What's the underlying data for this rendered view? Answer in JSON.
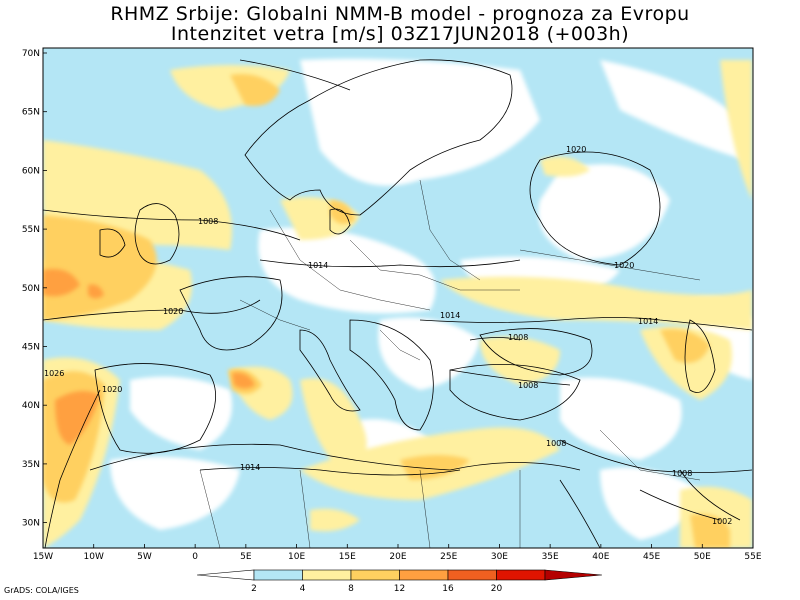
{
  "title_line1": "RHMZ Srbije: Globalni NMM-B model - prognoza za Evropu",
  "title_line2": "Intenzitet vetra [m/s] 03Z17JUN2018 (+003h)",
  "credit": "GrADS: COLA/IGES",
  "map": {
    "lon_labels": [
      "15W",
      "10W",
      "5W",
      "0",
      "5E",
      "10E",
      "15E",
      "20E",
      "25E",
      "30E",
      "35E",
      "40E",
      "45E",
      "50E",
      "55E"
    ],
    "lat_labels": [
      "70N",
      "65N",
      "60N",
      "55N",
      "50N",
      "45N",
      "40N",
      "35N",
      "30N"
    ],
    "isobar_labels": [
      "1008",
      "1014",
      "1020",
      "1020",
      "1020",
      "1014",
      "1014",
      "1014",
      "1008",
      "1008",
      "1008",
      "1008",
      "1002",
      "1020",
      "1026"
    ],
    "grid": "none"
  },
  "colorbar": {
    "ticks": [
      "2",
      "4",
      "8",
      "12",
      "16",
      "20"
    ],
    "colors": [
      "#ffffff",
      "#b4e6f5",
      "#fff0a0",
      "#ffd060",
      "#ffa040",
      "#f06020",
      "#e01400",
      "#b40000"
    ],
    "unit": "m/s"
  }
}
